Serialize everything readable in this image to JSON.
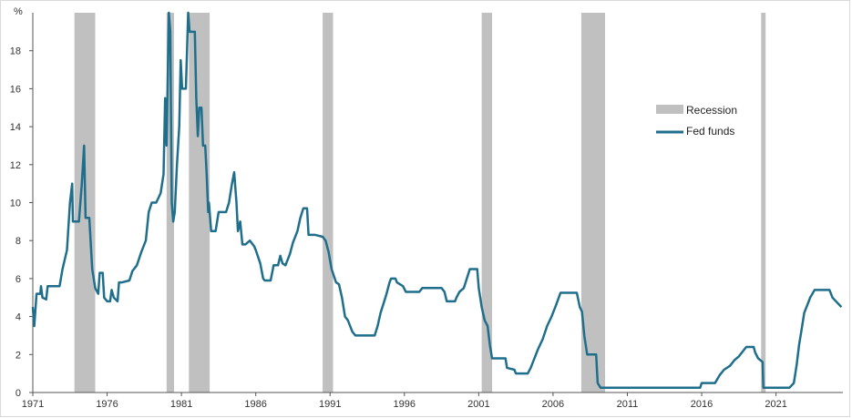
{
  "chart_data": {
    "type": "line",
    "title": "",
    "ylabel": "%",
    "xlabel": "",
    "ylim": [
      0,
      20
    ],
    "xlim": [
      1971.0,
      2025.5
    ],
    "yticks": [
      0,
      2,
      4,
      6,
      8,
      10,
      12,
      14,
      16,
      18
    ],
    "xticks": [
      1971,
      1976,
      1981,
      1986,
      1991,
      1996,
      2001,
      2006,
      2011,
      2016,
      2021
    ],
    "grid": false,
    "legend_position": "right",
    "legend": [
      {
        "label": "Recession",
        "kind": "band",
        "color": "#c0c0c0"
      },
      {
        "label": "Fed funds",
        "kind": "line",
        "color": "#1f6e8c"
      }
    ],
    "recessions": [
      {
        "start": 1973.8,
        "end": 1975.2
      },
      {
        "start": 1980.0,
        "end": 1980.5
      },
      {
        "start": 1981.5,
        "end": 1982.9
      },
      {
        "start": 1990.5,
        "end": 1991.2
      },
      {
        "start": 2001.2,
        "end": 2001.9
      },
      {
        "start": 2007.9,
        "end": 2009.5
      },
      {
        "start": 2020.0,
        "end": 2020.3
      }
    ],
    "series": [
      {
        "name": "Fed funds",
        "color": "#1f6e8c",
        "points": [
          [
            1971.0,
            4.5
          ],
          [
            1971.1,
            3.5
          ],
          [
            1971.25,
            5.2
          ],
          [
            1971.5,
            5.2
          ],
          [
            1971.55,
            5.6
          ],
          [
            1971.65,
            5.0
          ],
          [
            1971.9,
            4.9
          ],
          [
            1972.0,
            5.6
          ],
          [
            1972.5,
            5.6
          ],
          [
            1972.8,
            5.6
          ],
          [
            1973.0,
            6.5
          ],
          [
            1973.3,
            7.5
          ],
          [
            1973.5,
            10.0
          ],
          [
            1973.65,
            11.0
          ],
          [
            1973.7,
            9.0
          ],
          [
            1974.1,
            9.0
          ],
          [
            1974.3,
            11.0
          ],
          [
            1974.45,
            13.0
          ],
          [
            1974.55,
            9.2
          ],
          [
            1974.8,
            9.2
          ],
          [
            1975.0,
            6.5
          ],
          [
            1975.2,
            5.5
          ],
          [
            1975.4,
            5.2
          ],
          [
            1975.5,
            6.3
          ],
          [
            1975.7,
            6.3
          ],
          [
            1975.8,
            5.0
          ],
          [
            1976.0,
            4.8
          ],
          [
            1976.2,
            4.8
          ],
          [
            1976.3,
            5.4
          ],
          [
            1976.45,
            5.0
          ],
          [
            1976.7,
            4.8
          ],
          [
            1976.8,
            5.8
          ],
          [
            1977.0,
            5.8
          ],
          [
            1977.5,
            5.9
          ],
          [
            1977.7,
            6.4
          ],
          [
            1978.0,
            6.7
          ],
          [
            1978.3,
            7.4
          ],
          [
            1978.6,
            8.0
          ],
          [
            1978.8,
            9.5
          ],
          [
            1979.0,
            10.0
          ],
          [
            1979.3,
            10.0
          ],
          [
            1979.6,
            10.5
          ],
          [
            1979.8,
            11.5
          ],
          [
            1979.9,
            15.5
          ],
          [
            1980.0,
            13.0
          ],
          [
            1980.15,
            20.0
          ],
          [
            1980.25,
            19.0
          ],
          [
            1980.35,
            10.0
          ],
          [
            1980.45,
            9.0
          ],
          [
            1980.55,
            9.5
          ],
          [
            1980.7,
            12.0
          ],
          [
            1980.85,
            14.0
          ],
          [
            1980.95,
            17.5
          ],
          [
            1981.05,
            16.0
          ],
          [
            1981.3,
            16.0
          ],
          [
            1981.45,
            20.0
          ],
          [
            1981.55,
            19.0
          ],
          [
            1981.9,
            19.0
          ],
          [
            1982.0,
            15.5
          ],
          [
            1982.1,
            13.5
          ],
          [
            1982.2,
            15.0
          ],
          [
            1982.35,
            15.0
          ],
          [
            1982.45,
            13.0
          ],
          [
            1982.6,
            13.0
          ],
          [
            1982.7,
            11.5
          ],
          [
            1982.8,
            9.5
          ],
          [
            1982.85,
            10.0
          ],
          [
            1983.0,
            8.5
          ],
          [
            1983.3,
            8.5
          ],
          [
            1983.5,
            9.5
          ],
          [
            1984.0,
            9.5
          ],
          [
            1984.2,
            10.0
          ],
          [
            1984.4,
            11.0
          ],
          [
            1984.55,
            11.6
          ],
          [
            1984.7,
            10.0
          ],
          [
            1984.8,
            8.5
          ],
          [
            1984.95,
            9.0
          ],
          [
            1985.1,
            7.8
          ],
          [
            1985.3,
            7.8
          ],
          [
            1985.6,
            8.0
          ],
          [
            1985.9,
            7.7
          ],
          [
            1986.0,
            7.5
          ],
          [
            1986.3,
            6.8
          ],
          [
            1986.5,
            6.0
          ],
          [
            1986.6,
            5.9
          ],
          [
            1987.0,
            5.9
          ],
          [
            1987.2,
            6.7
          ],
          [
            1987.5,
            6.7
          ],
          [
            1987.65,
            7.2
          ],
          [
            1987.8,
            6.8
          ],
          [
            1988.0,
            6.7
          ],
          [
            1988.3,
            7.3
          ],
          [
            1988.5,
            7.9
          ],
          [
            1988.8,
            8.5
          ],
          [
            1989.0,
            9.2
          ],
          [
            1989.2,
            9.7
          ],
          [
            1989.45,
            9.7
          ],
          [
            1989.55,
            8.3
          ],
          [
            1990.0,
            8.3
          ],
          [
            1990.5,
            8.2
          ],
          [
            1990.7,
            8.0
          ],
          [
            1990.9,
            7.4
          ],
          [
            1991.1,
            6.5
          ],
          [
            1991.4,
            5.8
          ],
          [
            1991.6,
            5.7
          ],
          [
            1991.8,
            5.0
          ],
          [
            1992.0,
            4.0
          ],
          [
            1992.2,
            3.8
          ],
          [
            1992.5,
            3.2
          ],
          [
            1992.7,
            3.0
          ],
          [
            1993.0,
            3.0
          ],
          [
            1994.0,
            3.0
          ],
          [
            1994.2,
            3.5
          ],
          [
            1994.4,
            4.2
          ],
          [
            1994.6,
            4.7
          ],
          [
            1994.8,
            5.2
          ],
          [
            1995.0,
            5.8
          ],
          [
            1995.1,
            6.0
          ],
          [
            1995.4,
            6.0
          ],
          [
            1995.5,
            5.8
          ],
          [
            1995.9,
            5.6
          ],
          [
            1996.1,
            5.3
          ],
          [
            1997.0,
            5.3
          ],
          [
            1997.2,
            5.5
          ],
          [
            1998.5,
            5.5
          ],
          [
            1998.7,
            5.3
          ],
          [
            1998.85,
            4.8
          ],
          [
            1999.4,
            4.8
          ],
          [
            1999.5,
            5.0
          ],
          [
            1999.7,
            5.3
          ],
          [
            2000.0,
            5.5
          ],
          [
            2000.2,
            6.0
          ],
          [
            2000.4,
            6.5
          ],
          [
            2000.9,
            6.5
          ],
          [
            2001.0,
            5.5
          ],
          [
            2001.2,
            4.5
          ],
          [
            2001.4,
            3.8
          ],
          [
            2001.6,
            3.5
          ],
          [
            2001.75,
            2.5
          ],
          [
            2001.9,
            1.8
          ],
          [
            2002.8,
            1.8
          ],
          [
            2002.9,
            1.3
          ],
          [
            2003.4,
            1.2
          ],
          [
            2003.5,
            1.0
          ],
          [
            2004.3,
            1.0
          ],
          [
            2004.5,
            1.3
          ],
          [
            2004.8,
            1.9
          ],
          [
            2005.0,
            2.3
          ],
          [
            2005.3,
            2.8
          ],
          [
            2005.6,
            3.5
          ],
          [
            2005.9,
            4.0
          ],
          [
            2006.2,
            4.6
          ],
          [
            2006.5,
            5.25
          ],
          [
            2007.6,
            5.25
          ],
          [
            2007.8,
            4.5
          ],
          [
            2007.95,
            4.25
          ],
          [
            2008.1,
            3.0
          ],
          [
            2008.3,
            2.0
          ],
          [
            2008.9,
            2.0
          ],
          [
            2009.0,
            0.5
          ],
          [
            2009.2,
            0.25
          ],
          [
            2015.9,
            0.25
          ],
          [
            2016.0,
            0.5
          ],
          [
            2016.9,
            0.5
          ],
          [
            2017.2,
            0.9
          ],
          [
            2017.5,
            1.2
          ],
          [
            2017.9,
            1.4
          ],
          [
            2018.2,
            1.7
          ],
          [
            2018.5,
            1.9
          ],
          [
            2018.8,
            2.2
          ],
          [
            2019.0,
            2.4
          ],
          [
            2019.5,
            2.4
          ],
          [
            2019.6,
            2.1
          ],
          [
            2019.8,
            1.8
          ],
          [
            2020.1,
            1.6
          ],
          [
            2020.15,
            0.25
          ],
          [
            2021.9,
            0.25
          ],
          [
            2022.2,
            0.5
          ],
          [
            2022.4,
            1.5
          ],
          [
            2022.55,
            2.5
          ],
          [
            2022.7,
            3.2
          ],
          [
            2022.9,
            4.2
          ],
          [
            2023.1,
            4.6
          ],
          [
            2023.3,
            5.0
          ],
          [
            2023.6,
            5.4
          ],
          [
            2024.6,
            5.4
          ],
          [
            2024.8,
            5.0
          ],
          [
            2025.4,
            4.5
          ]
        ]
      }
    ]
  }
}
